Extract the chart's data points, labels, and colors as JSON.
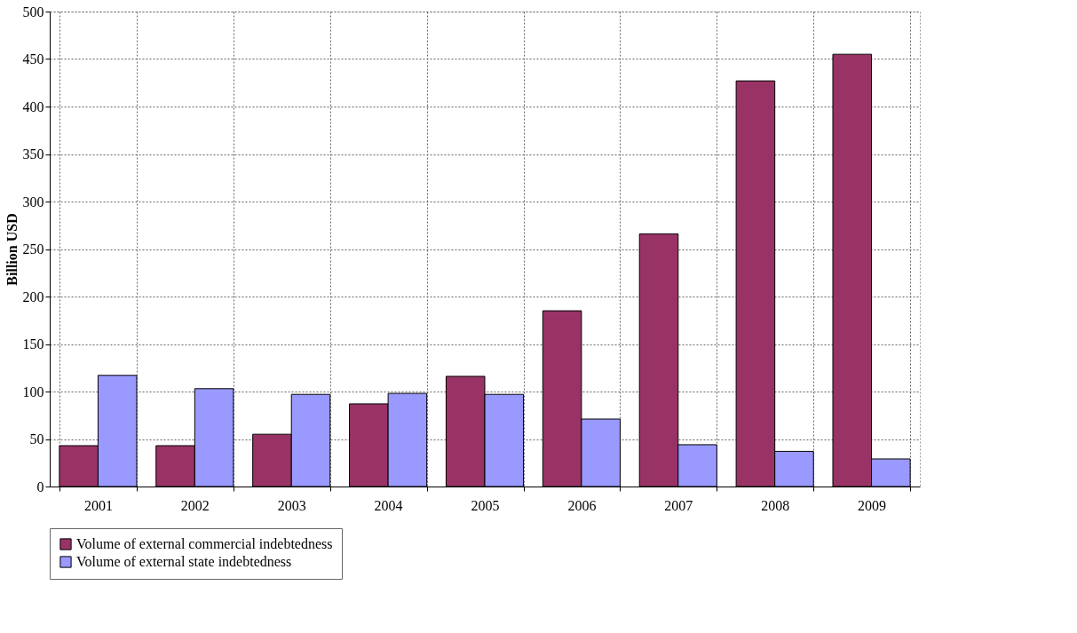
{
  "chart_data": {
    "type": "bar",
    "ylabel": "Billion USD",
    "categories": [
      "2001",
      "2002",
      "2003",
      "2004",
      "2005",
      "2006",
      "2007",
      "2008",
      "2009"
    ],
    "series": [
      {
        "name": "Volume of external commercial indebtedness",
        "color": "#993366",
        "values": [
          43,
          43,
          55,
          87,
          116,
          185,
          266,
          427,
          455
        ]
      },
      {
        "name": "Volume of external state indebtedness",
        "color": "#9999ff",
        "values": [
          117,
          103,
          97,
          98,
          97,
          71,
          44,
          37,
          29
        ]
      }
    ],
    "ylim": [
      0,
      500
    ],
    "yticks": [
      0,
      50,
      100,
      150,
      200,
      250,
      300,
      350,
      400,
      450,
      500
    ],
    "grid": true,
    "legend": "bottom"
  }
}
